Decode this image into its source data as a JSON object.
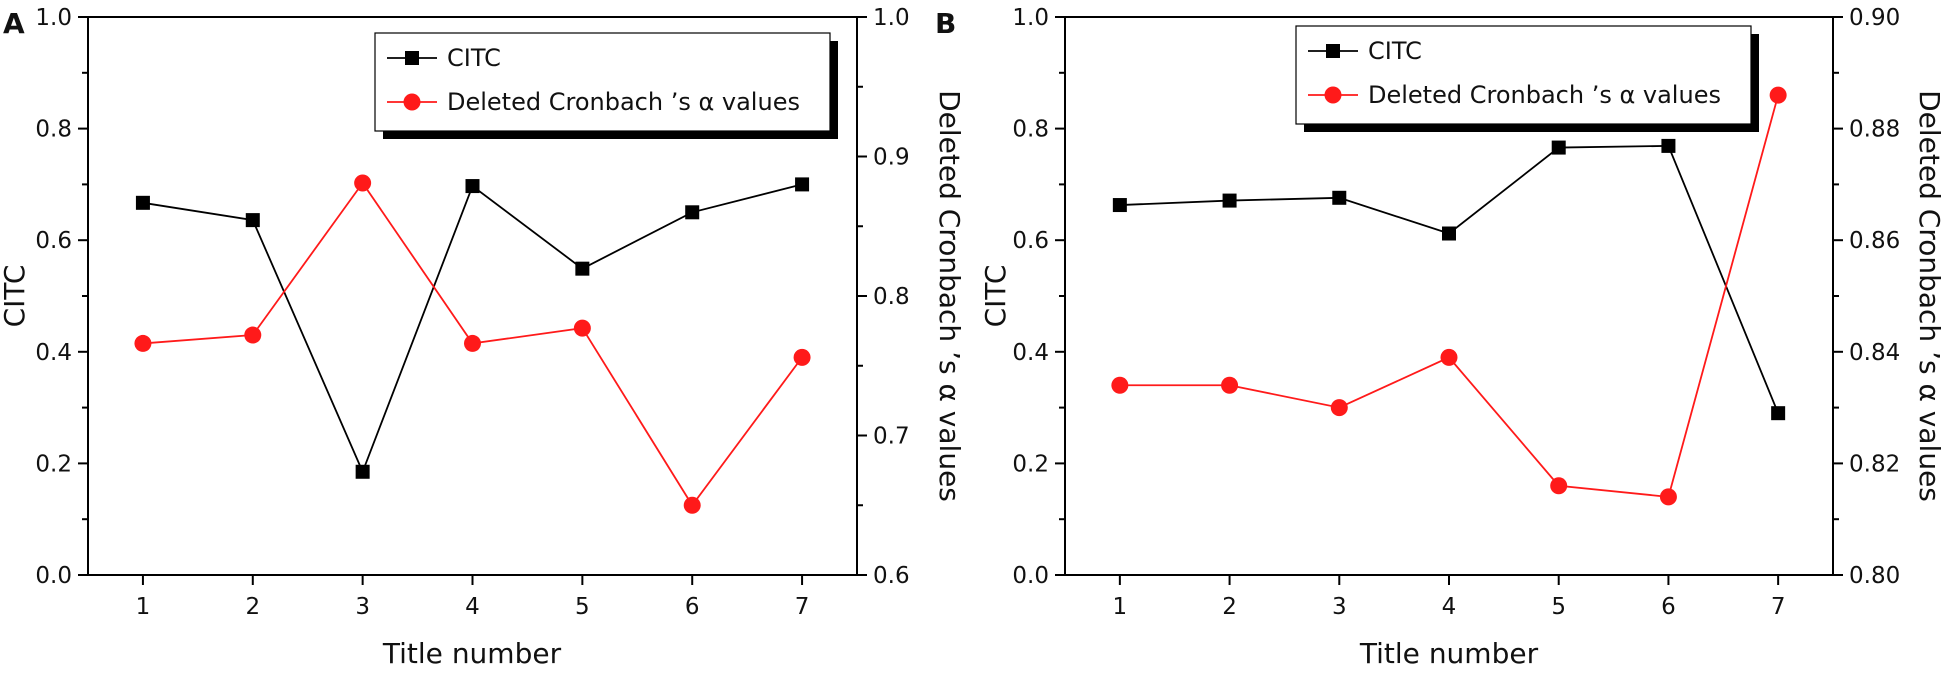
{
  "chart_data": [
    {
      "type": "line",
      "panel_label": "A",
      "xlabel": "Title number",
      "ylabel_left": "CITC",
      "ylabel_right": "Deleted Cronbach ’s α values",
      "x": [
        1,
        2,
        3,
        4,
        5,
        6,
        7
      ],
      "xticks": [
        "1",
        "2",
        "3",
        "4",
        "5",
        "6",
        "7"
      ],
      "xlim": [
        0.5,
        7.5
      ],
      "ylim_left": [
        0.0,
        1.0
      ],
      "yticks_left": [
        "0.0",
        "0.2",
        "0.4",
        "0.6",
        "0.8",
        "1.0"
      ],
      "ylim_right": [
        0.6,
        1.0
      ],
      "yticks_right": [
        "0.6",
        "0.7",
        "0.8",
        "0.9",
        "1.0"
      ],
      "legend_position": "top-right",
      "series": [
        {
          "name": "CITC",
          "axis": "left",
          "color": "#000000",
          "marker": "square",
          "values": [
            0.667,
            0.636,
            0.185,
            0.697,
            0.549,
            0.65,
            0.7
          ]
        },
        {
          "name": "Deleted Cronbach ’s α values",
          "axis": "right",
          "color": "#ff1a1a",
          "marker": "circle",
          "values": [
            0.766,
            0.772,
            0.881,
            0.766,
            0.777,
            0.65,
            0.756
          ]
        }
      ]
    },
    {
      "type": "line",
      "panel_label": "B",
      "xlabel": "Title number",
      "ylabel_left": "CITC",
      "ylabel_right": "Deleted Cronbach ’s α values",
      "x": [
        1,
        2,
        3,
        4,
        5,
        6,
        7
      ],
      "xticks": [
        "1",
        "2",
        "3",
        "4",
        "5",
        "6",
        "7"
      ],
      "xlim": [
        0.5,
        7.5
      ],
      "ylim_left": [
        0.0,
        1.0
      ],
      "yticks_left": [
        "0.0",
        "0.2",
        "0.4",
        "0.6",
        "0.8",
        "1.0"
      ],
      "ylim_right": [
        0.8,
        0.9
      ],
      "yticks_right": [
        "0.80",
        "0.82",
        "0.84",
        "0.86",
        "0.88",
        "0.90"
      ],
      "legend_position": "top-right",
      "series": [
        {
          "name": "CITC",
          "axis": "left",
          "color": "#000000",
          "marker": "square",
          "values": [
            0.663,
            0.671,
            0.676,
            0.612,
            0.766,
            0.769,
            0.29
          ]
        },
        {
          "name": "Deleted Cronbach ’s α values",
          "axis": "right",
          "color": "#ff1a1a",
          "marker": "circle",
          "values": [
            0.834,
            0.834,
            0.83,
            0.839,
            0.816,
            0.814,
            0.886
          ]
        }
      ]
    }
  ]
}
